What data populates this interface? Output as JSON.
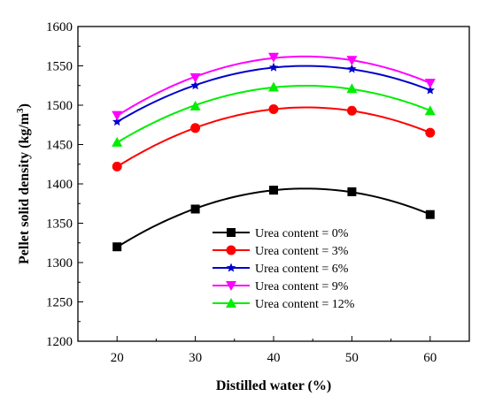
{
  "chart_data": {
    "type": "line",
    "title": "",
    "xlabel": "Distilled water (%)",
    "ylabel_main": "Pellet solid density (kg/m",
    "ylabel_sup": "3",
    "ylabel_close": ")",
    "xlim": [
      15,
      65
    ],
    "ylim": [
      1200,
      1600
    ],
    "x_ticks": [
      "20",
      "30",
      "40",
      "50",
      "60"
    ],
    "y_ticks": [
      "1200",
      "1250",
      "1300",
      "1350",
      "1400",
      "1450",
      "1500",
      "1550",
      "1600"
    ],
    "x": [
      20,
      30,
      40,
      50,
      60
    ],
    "grid": false,
    "legend_position": "center",
    "series": [
      {
        "name": "Urea content = 0%",
        "color": "#000000",
        "marker": "square",
        "values": [
          1320,
          1368,
          1392,
          1390,
          1361
        ]
      },
      {
        "name": "Urea content = 3%",
        "color": "#ff0000",
        "marker": "circle",
        "values": [
          1422,
          1471,
          1495,
          1493,
          1465
        ]
      },
      {
        "name": "Urea content = 6%",
        "color": "#0000cc",
        "marker": "star",
        "values": [
          1479,
          1525,
          1548,
          1546,
          1519
        ]
      },
      {
        "name": "Urea content = 9%",
        "color": "#ff00ff",
        "marker": "triangle-down",
        "values": [
          1487,
          1535,
          1561,
          1557,
          1528
        ]
      },
      {
        "name": "Urea content = 12%",
        "color": "#00ee00",
        "marker": "triangle-up",
        "values": [
          1453,
          1499,
          1523,
          1521,
          1493
        ]
      }
    ]
  }
}
